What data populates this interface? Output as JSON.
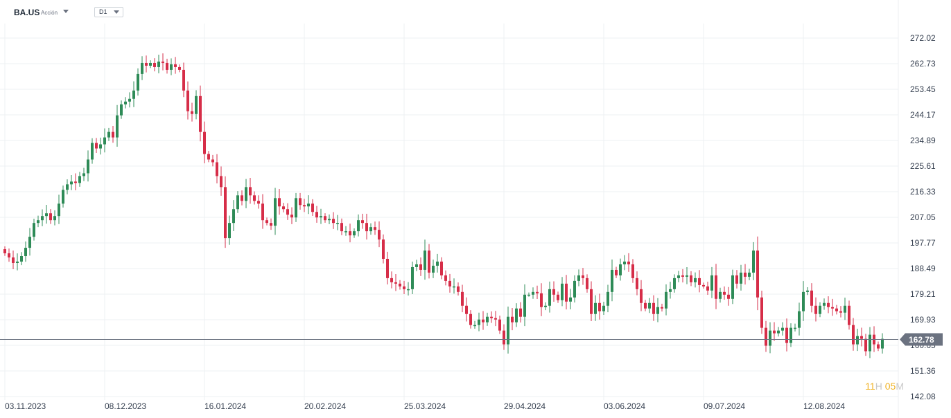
{
  "header": {
    "symbol": "BA.US",
    "instrument_type": "Acción",
    "timeframe": "D1"
  },
  "countdown": {
    "hours": "11",
    "hours_unit": "H",
    "minutes": "05",
    "minutes_unit": "M"
  },
  "colors": {
    "up": "#2e8b57",
    "down": "#d62d48",
    "grid": "#eef0f3",
    "price_line": "#6b7280",
    "price_tag": "#6b7280"
  },
  "chart_data": {
    "type": "candlestick",
    "symbol": "BA.US",
    "timeframe": "D1",
    "ylim": [
      142.08,
      276.7
    ],
    "y_ticks": [
      "272.02",
      "262.73",
      "253.45",
      "244.17",
      "234.89",
      "225.61",
      "216.33",
      "207.05",
      "197.77",
      "188.49",
      "179.21",
      "169.93",
      "160.65",
      "151.36",
      "142.08"
    ],
    "x_ticks": [
      "03.11.2023",
      "08.12.2023",
      "16.01.2024",
      "20.02.2024",
      "25.03.2024",
      "29.04.2024",
      "03.06.2024",
      "09.07.2024",
      "12.08.2024"
    ],
    "x_tick_positions": [
      0,
      24,
      48,
      72,
      96,
      120,
      144,
      168,
      192
    ],
    "current_price": "162.78",
    "grid": true,
    "closes": [
      194,
      192.5,
      190.5,
      191,
      193,
      196,
      200,
      205,
      206,
      207.5,
      208.5,
      206,
      207.5,
      212,
      217,
      219,
      220,
      219.5,
      222,
      223,
      228,
      234,
      232,
      233.5,
      236,
      238,
      236,
      244,
      248,
      249,
      250,
      253,
      259,
      263,
      262,
      263,
      261.5,
      263.5,
      263,
      260.5,
      262.5,
      261.5,
      260.5,
      253,
      245.5,
      244.5,
      251,
      238,
      230,
      228,
      227,
      222,
      218,
      199.5,
      205,
      210,
      215,
      213,
      218,
      215,
      213,
      212,
      206,
      205,
      204,
      214,
      211,
      210,
      208,
      207,
      214,
      211.5,
      211,
      212,
      209,
      207,
      207.5,
      206,
      206.5,
      205,
      205,
      202,
      202,
      200.5,
      202,
      206,
      205,
      202,
      203.5,
      202.5,
      199,
      192,
      185,
      183.5,
      183,
      182,
      181,
      181,
      189,
      190,
      188,
      195,
      187,
      189.5,
      191,
      186,
      184,
      182,
      182,
      180,
      175,
      172,
      168,
      168,
      170,
      169,
      171,
      170.5,
      170,
      166,
      161,
      171,
      169,
      174,
      171,
      179,
      179,
      180,
      179.5,
      174.5,
      175,
      181,
      179,
      177,
      183,
      176.5,
      178,
      184,
      186,
      185,
      181,
      172,
      176,
      173,
      175,
      180,
      188,
      186,
      190,
      191,
      190,
      185,
      181,
      176,
      174,
      176,
      172,
      174.5,
      174,
      180,
      181,
      185,
      186,
      185.5,
      186,
      183.5,
      185,
      182.5,
      182,
      180.5,
      186,
      177.5,
      180,
      179,
      177.5,
      186,
      183,
      187,
      185.5,
      187,
      195,
      178,
      167,
      160.5,
      166,
      165,
      166,
      167,
      161.5,
      167,
      167,
      173,
      180,
      180.5,
      175,
      172,
      175,
      176,
      174.5,
      174,
      173,
      172.5,
      175,
      168,
      161,
      164,
      163,
      158.5,
      164.5,
      161,
      159.5,
      163
    ]
  }
}
